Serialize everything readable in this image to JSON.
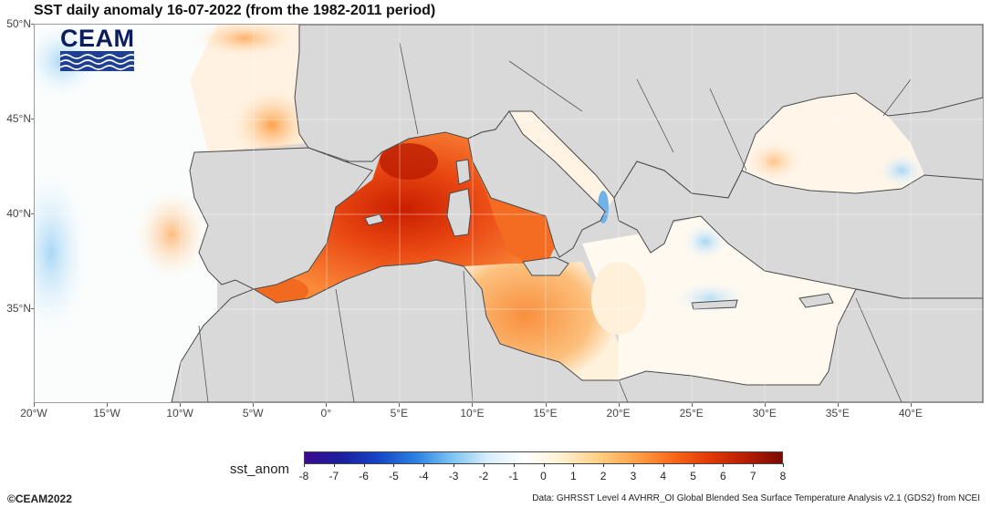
{
  "title": "SST daily anomaly 16-07-2022 (from the 1982-2011 period)",
  "logo": {
    "text": "CEAM"
  },
  "map": {
    "lon_range": [
      -20,
      45
    ],
    "lat_range": [
      30,
      50
    ],
    "lat_labels": [
      "50°N",
      "45°N",
      "40°N",
      "35°N"
    ],
    "lon_labels": [
      "20°W",
      "15°W",
      "10°W",
      "5°W",
      "0°",
      "5°E",
      "10°E",
      "15°E",
      "20°E",
      "25°E",
      "30°E",
      "35°E",
      "40°E"
    ]
  },
  "colorbar": {
    "label": "sst_anom",
    "ticks": [
      "-8",
      "-7",
      "-6",
      "-5",
      "-4",
      "-3",
      "-2",
      "-1",
      "0",
      "1",
      "2",
      "3",
      "4",
      "5",
      "6",
      "7",
      "8"
    ],
    "range": [
      -8,
      8
    ],
    "colors": [
      "#3b0a8e",
      "#1a1fa0",
      "#1646c6",
      "#2a7fe0",
      "#7cc3f2",
      "#d8eefb",
      "#ffffff",
      "#fff0d0",
      "#ffcf85",
      "#ffa24a",
      "#fa6a1b",
      "#e33a07",
      "#b81e00",
      "#7a0a00"
    ]
  },
  "copyright": "©CEAM2022",
  "source": "Data: GHRSST Level 4 AVHRR_OI Global Blended Sea Surface Temperature Analysis v2.1 (GDS2) from NCEI",
  "colors": {
    "land": "#d9d9d9",
    "sea_neutral": "#fffdf8",
    "warm": "#ff8c35",
    "hot": "#e0420a",
    "cool": "#bfe3f7"
  }
}
